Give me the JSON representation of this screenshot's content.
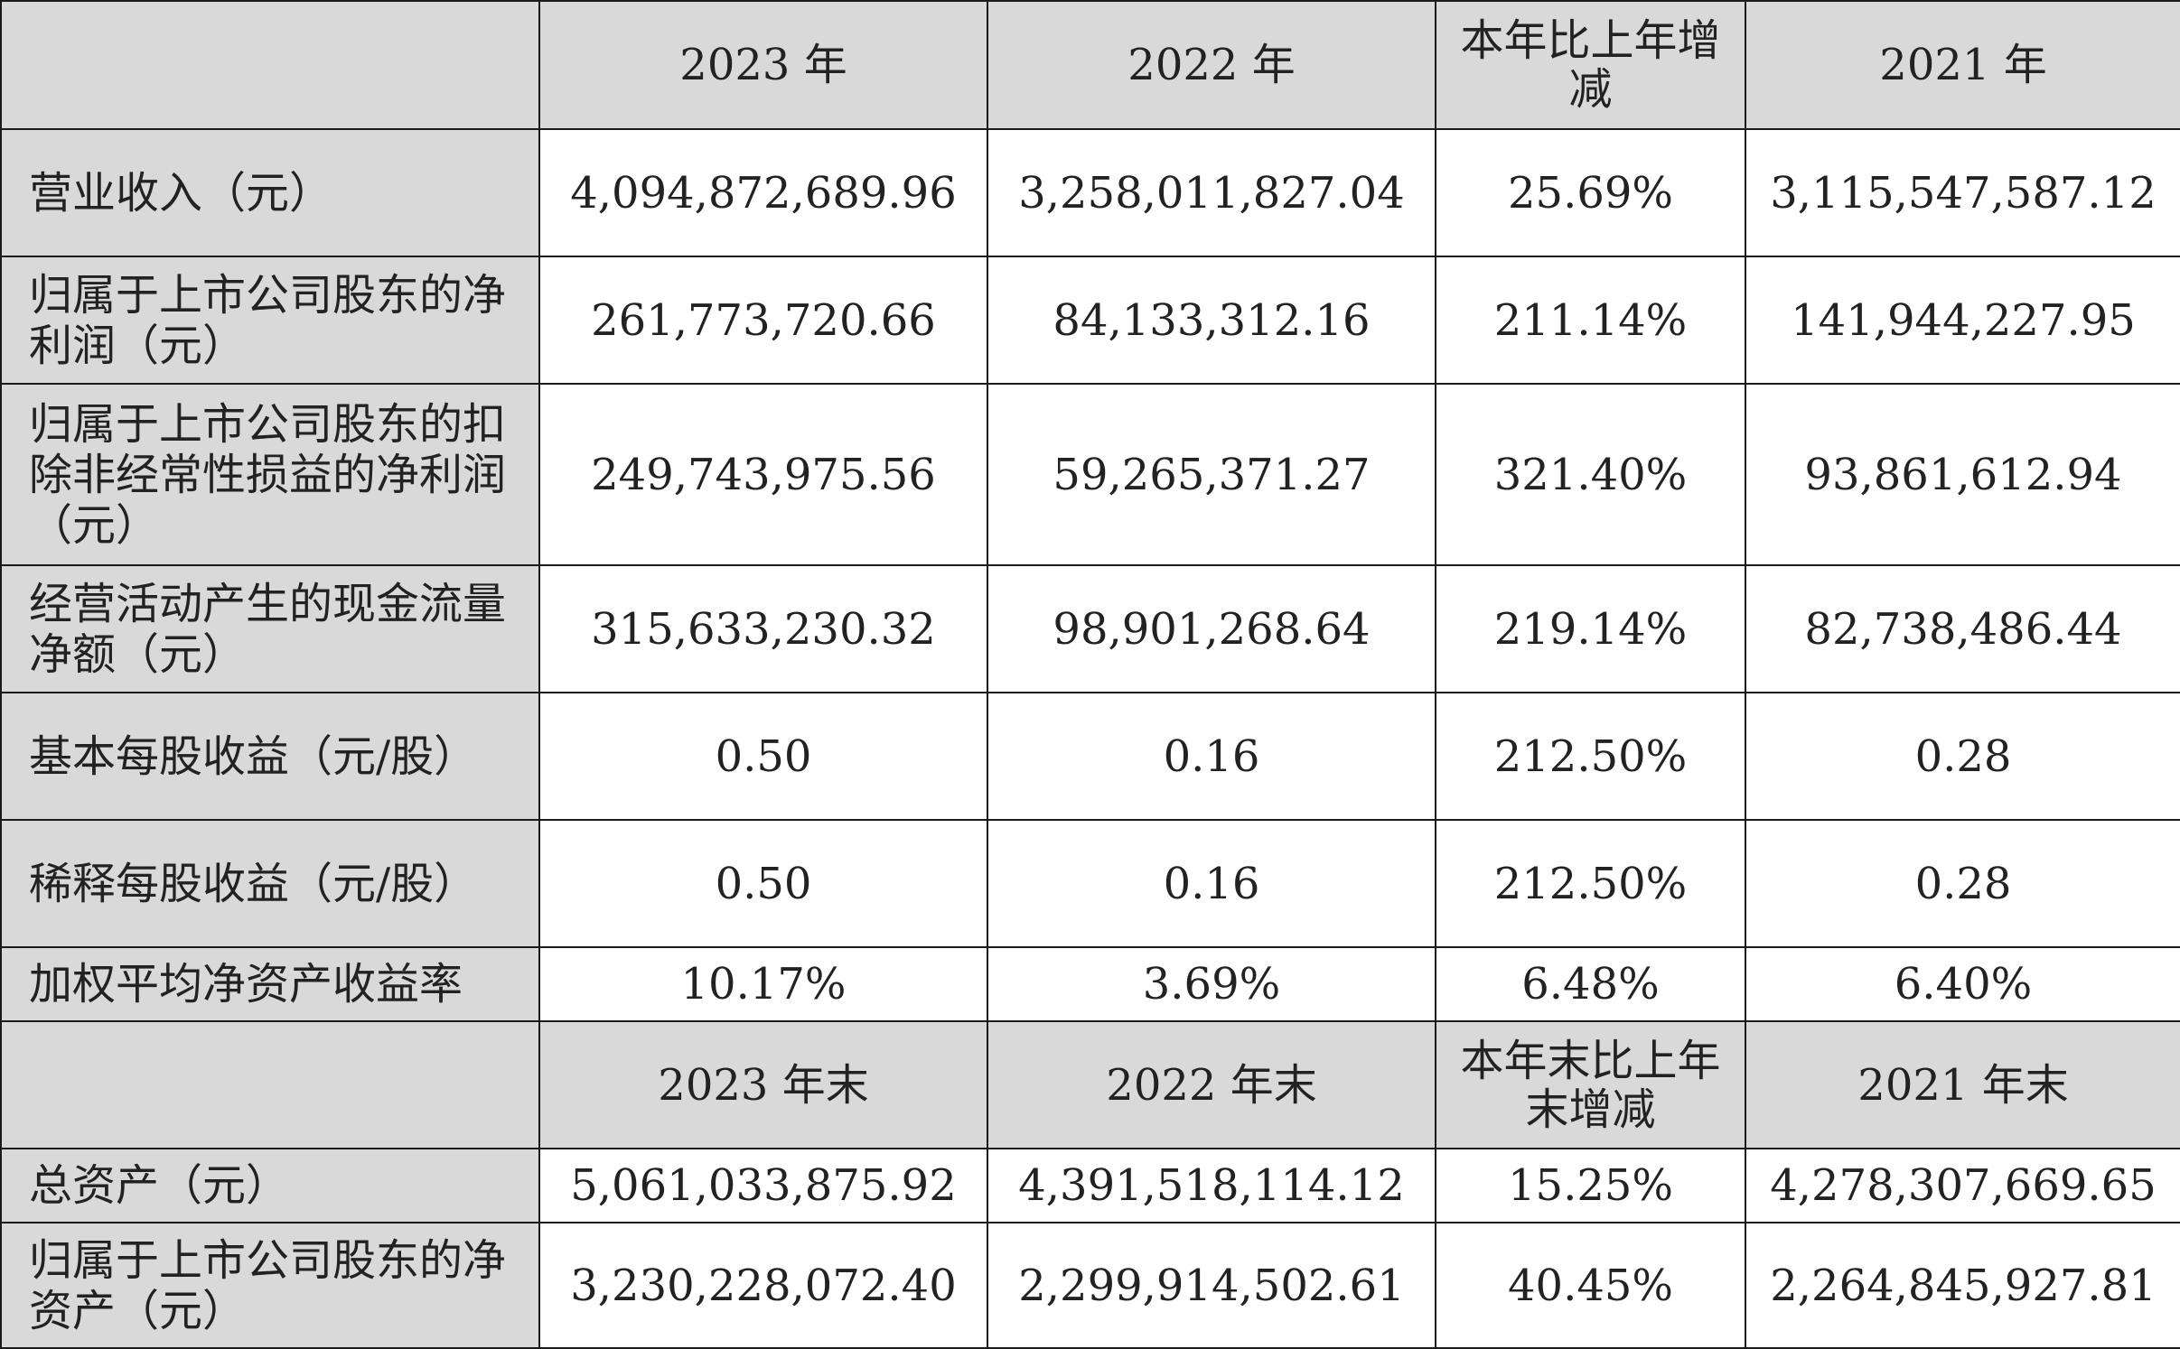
{
  "header_period": {
    "label": "",
    "cols": [
      "2023 年",
      "2022 年",
      "本年比上年增减",
      "2021 年"
    ]
  },
  "rows_period": [
    {
      "label": "营业收入（元）",
      "values": [
        "4,094,872,689.96",
        "3,258,011,827.04",
        "25.69%",
        "3,115,547,587.12"
      ]
    },
    {
      "label": "归属于上市公司股东的净利润（元）",
      "values": [
        "261,773,720.66",
        "84,133,312.16",
        "211.14%",
        "141,944,227.95"
      ]
    },
    {
      "label": "归属于上市公司股东的扣除非经常性损益的净利润（元）",
      "values": [
        "249,743,975.56",
        "59,265,371.27",
        "321.40%",
        "93,861,612.94"
      ]
    },
    {
      "label": "经营活动产生的现金流量净额（元）",
      "values": [
        "315,633,230.32",
        "98,901,268.64",
        "219.14%",
        "82,738,486.44"
      ]
    },
    {
      "label": "基本每股收益（元/股）",
      "values": [
        "0.50",
        "0.16",
        "212.50%",
        "0.28"
      ]
    },
    {
      "label": "稀释每股收益（元/股）",
      "values": [
        "0.50",
        "0.16",
        "212.50%",
        "0.28"
      ]
    },
    {
      "label": "加权平均净资产收益率",
      "values": [
        "10.17%",
        "3.69%",
        "6.48%",
        "6.40%"
      ]
    }
  ],
  "header_end": {
    "label": "",
    "cols": [
      "2023 年末",
      "2022 年末",
      "本年末比上年末增减",
      "2021 年末"
    ]
  },
  "rows_end": [
    {
      "label": "总资产（元）",
      "values": [
        "5,061,033,875.92",
        "4,391,518,114.12",
        "15.25%",
        "4,278,307,669.65"
      ]
    },
    {
      "label": "归属于上市公司股东的净资产（元）",
      "values": [
        "3,230,228,072.40",
        "2,299,914,502.61",
        "40.45%",
        "2,264,845,927.81"
      ]
    }
  ]
}
